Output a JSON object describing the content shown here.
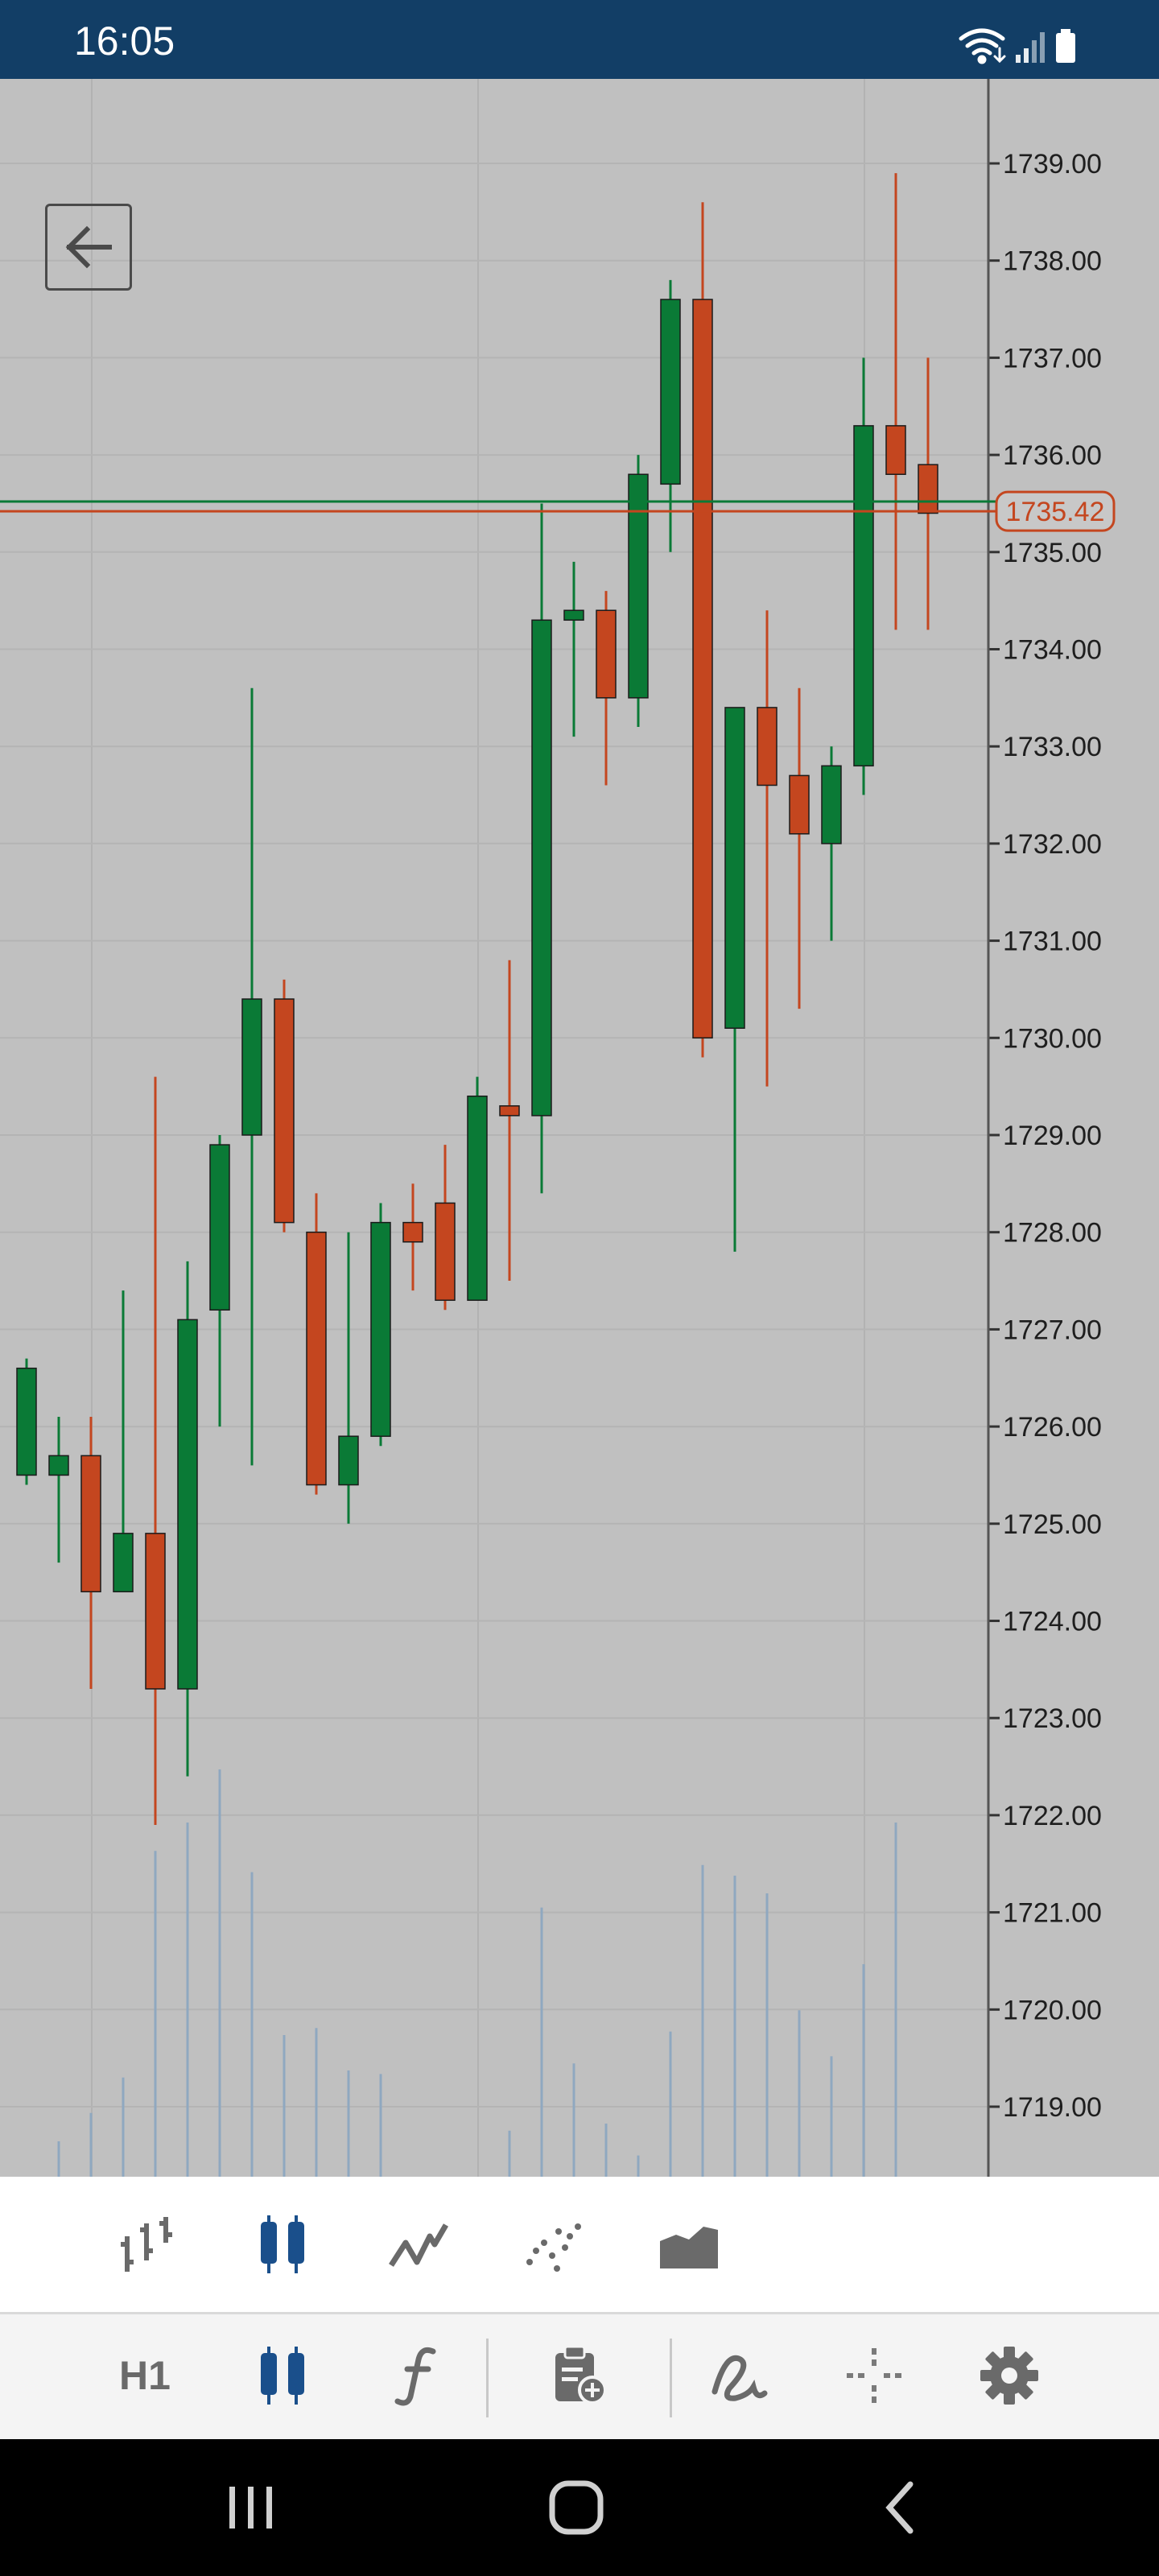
{
  "status_bar": {
    "time": "16:05",
    "icons": [
      "wifi-icon",
      "signal-icon",
      "battery-icon"
    ]
  },
  "chart_toolbar_top": {
    "chart_types": [
      {
        "name": "bar-chart",
        "icon": "ohlc-bars-icon",
        "selected": false
      },
      {
        "name": "candlestick-chart",
        "icon": "candlestick-icon",
        "selected": true
      },
      {
        "name": "line-chart",
        "icon": "line-chart-icon",
        "selected": false
      },
      {
        "name": "dot-chart",
        "icon": "dots-chart-icon",
        "selected": false
      },
      {
        "name": "area-chart",
        "icon": "area-chart-icon",
        "selected": false
      }
    ]
  },
  "chart_toolbar_bottom": {
    "timeframe": "H1",
    "tools": [
      "candlestick-icon",
      "function-icon",
      "clipboard-add-icon",
      "freehand-draw-icon",
      "crosshair-icon",
      "gear-icon"
    ]
  },
  "nav_bar": {
    "buttons": [
      "recent-apps-icon",
      "home-icon",
      "back-icon"
    ]
  },
  "colors": {
    "bull": "#0a7a36",
    "bear": "#c4461f",
    "volume": "#8fa8c0",
    "status_bar": "#123e66",
    "selected_icon": "#1a4f8b"
  },
  "chart_data": {
    "type": "candlestick",
    "symbol_timeframe": "H1",
    "y_axis_ticks": [
      "1739.00",
      "1738.00",
      "1737.00",
      "1736.00",
      "1735.00",
      "1734.00",
      "1733.00",
      "1732.00",
      "1731.00",
      "1730.00",
      "1729.00",
      "1728.00",
      "1727.00",
      "1726.00",
      "1725.00",
      "1724.00",
      "1723.00",
      "1722.00",
      "1721.00",
      "1720.00",
      "1719.00"
    ],
    "ylim": [
      1718.3,
      1739.8
    ],
    "current_price_label": "1735.42",
    "ask_price": 1735.52,
    "bid_price": 1735.42,
    "candles": [
      {
        "o": 1725.5,
        "h": 1726.7,
        "l": 1725.4,
        "c": 1726.6,
        "vol": 0
      },
      {
        "o": 1725.5,
        "h": 1726.1,
        "l": 1724.6,
        "c": 1725.7,
        "vol": 0.1
      },
      {
        "o": 1725.7,
        "h": 1726.1,
        "l": 1723.3,
        "c": 1724.3,
        "vol": 0.18
      },
      {
        "o": 1724.3,
        "h": 1727.4,
        "l": 1724.3,
        "c": 1724.9,
        "vol": 0.28
      },
      {
        "o": 1724.9,
        "h": 1729.6,
        "l": 1721.9,
        "c": 1723.3,
        "vol": 0.92
      },
      {
        "o": 1723.3,
        "h": 1727.7,
        "l": 1722.4,
        "c": 1727.1,
        "vol": 1.0
      },
      {
        "o": 1727.2,
        "h": 1729.0,
        "l": 1726.0,
        "c": 1728.9,
        "vol": 1.15
      },
      {
        "o": 1729.0,
        "h": 1733.6,
        "l": 1725.6,
        "c": 1730.4,
        "vol": 0.86
      },
      {
        "o": 1730.4,
        "h": 1730.6,
        "l": 1728.0,
        "c": 1728.1,
        "vol": 0.4
      },
      {
        "o": 1728.0,
        "h": 1728.4,
        "l": 1725.3,
        "c": 1725.4,
        "vol": 0.42
      },
      {
        "o": 1725.4,
        "h": 1728.0,
        "l": 1725.0,
        "c": 1725.9,
        "vol": 0.3
      },
      {
        "o": 1725.9,
        "h": 1728.3,
        "l": 1725.8,
        "c": 1728.1,
        "vol": 0.29
      },
      {
        "o": 1728.1,
        "h": 1728.5,
        "l": 1727.4,
        "c": 1727.9,
        "vol": 0
      },
      {
        "o": 1728.3,
        "h": 1728.9,
        "l": 1727.2,
        "c": 1727.3,
        "vol": 0
      },
      {
        "o": 1727.3,
        "h": 1729.6,
        "l": 1727.3,
        "c": 1729.4,
        "vol": 0
      },
      {
        "o": 1729.3,
        "h": 1730.8,
        "l": 1727.5,
        "c": 1729.2,
        "vol": 0.13
      },
      {
        "o": 1729.2,
        "h": 1735.5,
        "l": 1728.4,
        "c": 1734.3,
        "vol": 0.76
      },
      {
        "o": 1734.3,
        "h": 1734.9,
        "l": 1733.1,
        "c": 1734.4,
        "vol": 0.32
      },
      {
        "o": 1734.4,
        "h": 1734.6,
        "l": 1732.6,
        "c": 1733.5,
        "vol": 0.15
      },
      {
        "o": 1733.5,
        "h": 1736.0,
        "l": 1733.2,
        "c": 1735.8,
        "vol": 0.06
      },
      {
        "o": 1735.7,
        "h": 1737.8,
        "l": 1735.0,
        "c": 1737.6,
        "vol": 0.41
      },
      {
        "o": 1737.6,
        "h": 1738.6,
        "l": 1729.8,
        "c": 1730.0,
        "vol": 0.88
      },
      {
        "o": 1730.1,
        "h": 1733.4,
        "l": 1727.8,
        "c": 1733.4,
        "vol": 0.85
      },
      {
        "o": 1733.4,
        "h": 1734.4,
        "l": 1729.5,
        "c": 1732.6,
        "vol": 0.8
      },
      {
        "o": 1732.7,
        "h": 1733.6,
        "l": 1730.3,
        "c": 1732.1,
        "vol": 0.47
      },
      {
        "o": 1732.0,
        "h": 1733.0,
        "l": 1731.0,
        "c": 1732.8,
        "vol": 0.34
      },
      {
        "o": 1732.8,
        "h": 1737.0,
        "l": 1732.5,
        "c": 1736.3,
        "vol": 0.6
      },
      {
        "o": 1736.3,
        "h": 1738.9,
        "l": 1734.2,
        "c": 1735.8,
        "vol": 1.0
      },
      {
        "o": 1735.9,
        "h": 1737.0,
        "l": 1734.2,
        "c": 1735.4,
        "vol": 0
      }
    ]
  }
}
